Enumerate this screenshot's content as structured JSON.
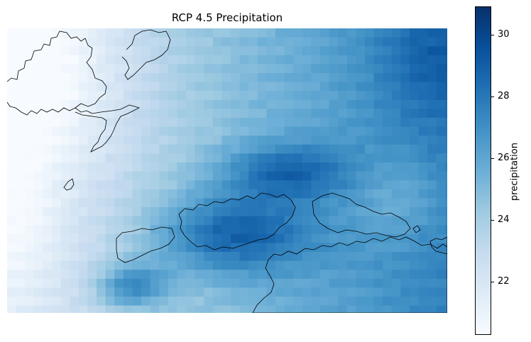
{
  "title": "RCP 4.5 Precipitation",
  "colorbar": {
    "label": "precipitation",
    "min": 20.3,
    "max": 30.9,
    "ticks": [
      "22",
      "24",
      "26",
      "28",
      "30"
    ],
    "tick_values": [
      22,
      24,
      26,
      28,
      30
    ]
  },
  "colormap": "Blues",
  "colors": {
    "low": "#f7fbff",
    "mid": "#6baed6",
    "high": "#08306b",
    "outline": "#000000"
  }
}
